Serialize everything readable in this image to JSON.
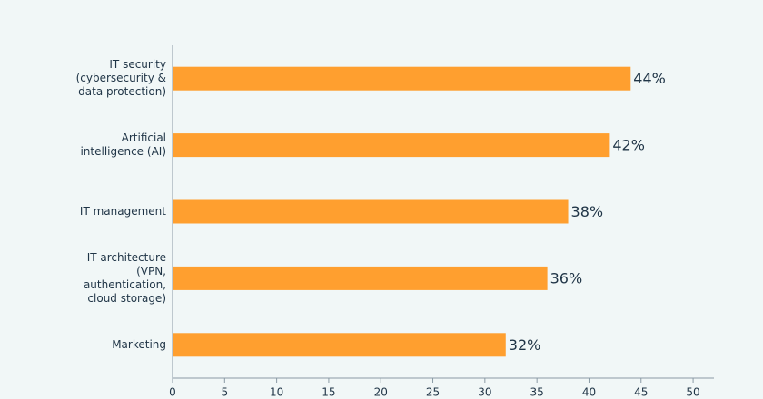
{
  "chart_data": {
    "type": "bar",
    "orientation": "horizontal",
    "categories": [
      [
        "IT security",
        "(cybersecurity &",
        "data protection)"
      ],
      [
        "Artificial",
        "intelligence (AI)"
      ],
      [
        "IT management"
      ],
      [
        "IT architecture",
        "(VPN,",
        "authentication,",
        "cloud storage)"
      ],
      [
        "Marketing"
      ]
    ],
    "values": [
      44,
      42,
      38,
      36,
      32
    ],
    "value_labels": [
      "44%",
      "42%",
      "38%",
      "36%",
      "32%"
    ],
    "color": "#ff9f2f",
    "xlim": [
      0,
      52
    ],
    "xticks": [
      0,
      5,
      10,
      15,
      20,
      25,
      30,
      35,
      40,
      45,
      50
    ]
  }
}
